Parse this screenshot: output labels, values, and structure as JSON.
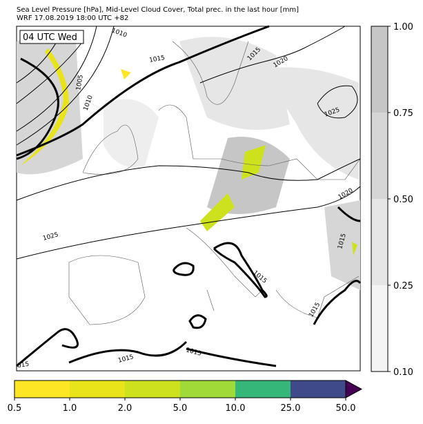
{
  "header": {
    "title": "Sea Level Pressure [hPa], Mid-Level Cloud Cover, Total prec. in the last hour [mm]",
    "subtitle": "WRF 17.08.2019 18:00 UTC +82"
  },
  "map": {
    "time_label": "04 UTC Wed",
    "isobar_labels": [
      "1010",
      "1005",
      "1010",
      "1015",
      "1015",
      "1020",
      "1025",
      "1025",
      "1020",
      "1015",
      "1015",
      "1015",
      "1015",
      "1015",
      "015"
    ]
  },
  "cloud_colorbar": {
    "ticks": [
      {
        "value": 0.1,
        "label": "0.10"
      },
      {
        "value": 0.25,
        "label": "0.25"
      },
      {
        "value": 0.5,
        "label": "0.50"
      },
      {
        "value": 0.75,
        "label": "0.75"
      },
      {
        "value": 1,
        "label": "1.00"
      }
    ],
    "colors": [
      "#f4f4f4",
      "#e6e6e6",
      "#d6d6d6",
      "#c6c6c6"
    ]
  },
  "precip_colorbar": {
    "ticks": [
      0.5,
      {
        "value": 1,
        "label": "1.0"
      },
      {
        "value": 2,
        "label": "2.0"
      },
      {
        "value": 5,
        "label": "5.0"
      },
      {
        "value": 10,
        "label": "10.0"
      },
      {
        "value": 25,
        "label": "25.0"
      },
      {
        "value": 50,
        "label": "50.0"
      }
    ],
    "colors": [
      "#fde725",
      "#e8e419",
      "#cde11d",
      "#a0da39",
      "#35b779",
      "#3e4a89"
    ],
    "over_color": "#440154"
  }
}
